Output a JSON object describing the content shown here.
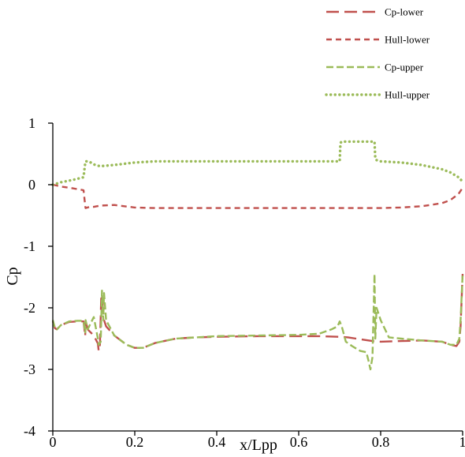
{
  "chart_data": {
    "type": "line",
    "title": "",
    "xlabel": "x/Lpp",
    "ylabel": "Cp",
    "xlim": [
      0,
      1
    ],
    "ylim": [
      -4,
      1
    ],
    "xticks": [
      0,
      0.2,
      0.4,
      0.6,
      0.8,
      1
    ],
    "xtick_labels": [
      "0",
      "0.2",
      "0.4",
      "0.6",
      "0.8",
      "1"
    ],
    "yticks": [
      1,
      0,
      -1,
      -2,
      -3,
      -4
    ],
    "ytick_labels": [
      "1",
      "0",
      "-1",
      "-2",
      "-3",
      "-4"
    ],
    "grid": false,
    "legend_position": "top-right",
    "series": [
      {
        "name": "Cp-lower",
        "color": "#c0504d",
        "dash": "long-dash",
        "x": [
          0,
          0.005,
          0.01,
          0.02,
          0.04,
          0.06,
          0.075,
          0.079,
          0.08,
          0.085,
          0.1,
          0.11,
          0.112,
          0.115,
          0.118,
          0.12,
          0.125,
          0.13,
          0.15,
          0.18,
          0.2,
          0.22,
          0.25,
          0.3,
          0.35,
          0.4,
          0.5,
          0.6,
          0.65,
          0.7,
          0.72,
          0.74,
          0.76,
          0.78,
          0.8,
          0.85,
          0.9,
          0.95,
          0.97,
          0.985,
          0.992,
          0.995,
          1
        ],
        "y": [
          -2.22,
          -2.33,
          -2.35,
          -2.28,
          -2.23,
          -2.22,
          -2.22,
          -2.46,
          -2.2,
          -2.35,
          -2.45,
          -2.58,
          -2.7,
          -2.6,
          -1.85,
          -1.82,
          -2.2,
          -2.3,
          -2.45,
          -2.6,
          -2.65,
          -2.65,
          -2.57,
          -2.5,
          -2.48,
          -2.47,
          -2.46,
          -2.46,
          -2.46,
          -2.47,
          -2.48,
          -2.5,
          -2.52,
          -2.54,
          -2.55,
          -2.54,
          -2.53,
          -2.55,
          -2.6,
          -2.62,
          -2.55,
          -2.3,
          -1.45
        ]
      },
      {
        "name": "Hull-lower",
        "color": "#c0504d",
        "dash": "short-dash",
        "x": [
          0,
          0.02,
          0.05,
          0.075,
          0.078,
          0.079,
          0.08,
          0.09,
          0.1,
          0.115,
          0.15,
          0.2,
          0.25,
          0.3,
          0.4,
          0.5,
          0.6,
          0.7,
          0.8,
          0.85,
          0.9,
          0.95,
          0.97,
          0.99,
          1
        ],
        "y": [
          0,
          -0.03,
          -0.06,
          -0.09,
          -0.28,
          -0.35,
          -0.38,
          -0.36,
          -0.36,
          -0.34,
          -0.33,
          -0.37,
          -0.38,
          -0.38,
          -0.38,
          -0.38,
          -0.38,
          -0.38,
          -0.38,
          -0.37,
          -0.35,
          -0.3,
          -0.25,
          -0.15,
          -0.05
        ]
      },
      {
        "name": "Cp-upper",
        "color": "#9bbb59",
        "dash": "medium-dash",
        "x": [
          0,
          0.005,
          0.01,
          0.02,
          0.04,
          0.06,
          0.075,
          0.079,
          0.08,
          0.085,
          0.1,
          0.11,
          0.112,
          0.117,
          0.12,
          0.123,
          0.125,
          0.13,
          0.15,
          0.18,
          0.2,
          0.22,
          0.25,
          0.3,
          0.4,
          0.5,
          0.6,
          0.65,
          0.68,
          0.695,
          0.7,
          0.705,
          0.715,
          0.73,
          0.75,
          0.765,
          0.77,
          0.775,
          0.78,
          0.785,
          0.787,
          0.79,
          0.8,
          0.82,
          0.85,
          0.9,
          0.95,
          0.97,
          0.985,
          0.992,
          0.995,
          1
        ],
        "y": [
          -2.2,
          -2.32,
          -2.35,
          -2.28,
          -2.22,
          -2.21,
          -2.21,
          -2.4,
          -2.2,
          -2.35,
          -2.15,
          -2.5,
          -2.6,
          -2.55,
          -1.72,
          -2.2,
          -1.76,
          -2.2,
          -2.45,
          -2.6,
          -2.65,
          -2.65,
          -2.57,
          -2.5,
          -2.46,
          -2.45,
          -2.44,
          -2.42,
          -2.35,
          -2.3,
          -2.22,
          -2.3,
          -2.55,
          -2.62,
          -2.7,
          -2.72,
          -2.85,
          -3.0,
          -2.8,
          -1.45,
          -2.5,
          -2.0,
          -2.2,
          -2.48,
          -2.5,
          -2.53,
          -2.55,
          -2.6,
          -2.6,
          -2.5,
          -2.2,
          -1.45
        ]
      },
      {
        "name": "Hull-upper",
        "color": "#9bbb59",
        "dash": "dotted",
        "x": [
          0,
          0.02,
          0.05,
          0.075,
          0.078,
          0.08,
          0.085,
          0.09,
          0.1,
          0.115,
          0.15,
          0.2,
          0.25,
          0.3,
          0.4,
          0.5,
          0.6,
          0.7,
          0.702,
          0.705,
          0.75,
          0.785,
          0.787,
          0.79,
          0.8,
          0.85,
          0.9,
          0.95,
          0.97,
          0.99,
          1
        ],
        "y": [
          0,
          0.04,
          0.08,
          0.12,
          0.3,
          0.38,
          0.38,
          0.37,
          0.33,
          0.3,
          0.32,
          0.36,
          0.38,
          0.38,
          0.38,
          0.38,
          0.38,
          0.38,
          0.68,
          0.7,
          0.7,
          0.7,
          0.42,
          0.4,
          0.38,
          0.36,
          0.32,
          0.25,
          0.2,
          0.12,
          0.05
        ]
      }
    ]
  }
}
